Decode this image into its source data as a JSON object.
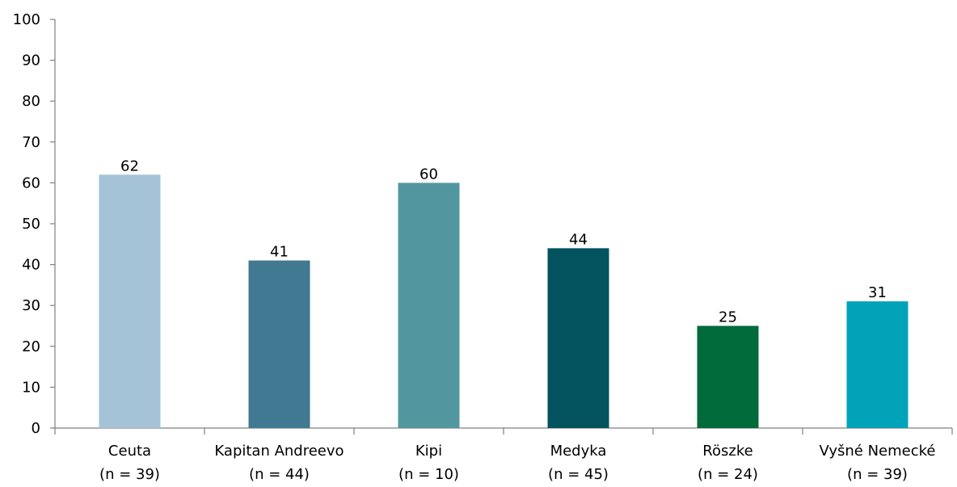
{
  "chart_data": {
    "type": "bar",
    "categories": [
      {
        "name": "Ceuta",
        "n": "(n = 39)"
      },
      {
        "name": "Kapitan Andreevo",
        "n": "(n = 44)"
      },
      {
        "name": "Kipi",
        "n": "(n = 10)"
      },
      {
        "name": "Medyka",
        "n": "(n = 45)"
      },
      {
        "name": "Röszke",
        "n": "(n = 24)"
      },
      {
        "name": "Vyšné Nemecké",
        "n": "(n = 39)"
      }
    ],
    "values": [
      62,
      41,
      60,
      44,
      25,
      31
    ],
    "data_labels": [
      "62",
      "41",
      "60",
      "44",
      "25",
      "31"
    ],
    "colors": [
      "#a5c3d6",
      "#417892",
      "#5297a0",
      "#03535e",
      "#006a3b",
      "#00a3b8"
    ],
    "ylim": [
      0,
      100
    ],
    "yticks": [
      0,
      10,
      20,
      30,
      40,
      50,
      60,
      70,
      80,
      90,
      100
    ],
    "ytick_labels": [
      "0",
      "10",
      "20",
      "30",
      "40",
      "50",
      "60",
      "70",
      "80",
      "90",
      "100"
    ],
    "grid": false,
    "axis_color": "#808080",
    "title": "",
    "xlabel": "",
    "ylabel": ""
  }
}
